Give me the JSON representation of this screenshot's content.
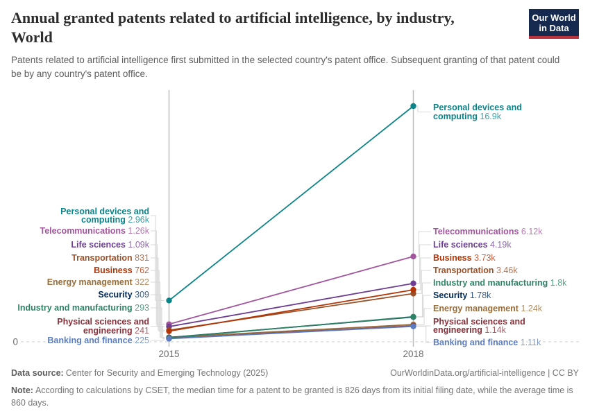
{
  "header": {
    "title_line1": "Annual granted patents related to artificial intelligence, by industry,",
    "title_line2": "World",
    "subtitle": "Patents related to artificial intelligence first submitted in the selected country's patent office. Subsequent granting of that patent could be by any country's patent office.",
    "logo": {
      "line1": "Our World",
      "line2": "in Data",
      "bg_color": "#16294F",
      "accent_color": "#C0323B",
      "text_color": "#FFFFFF"
    }
  },
  "chart_data": {
    "type": "line",
    "subtype": "slope",
    "x": [
      2015,
      2018
    ],
    "x_tick_labels": [
      "2015",
      "2018"
    ],
    "y_axis": {
      "min": 0,
      "max": 16900,
      "min_label": "0",
      "zero_gridline": "dashed"
    },
    "legend_position": "inline-labels-both-sides",
    "series": [
      {
        "name": "Personal devices and computing",
        "color": "#0B8489",
        "values": [
          2960,
          16900
        ],
        "value_labels": [
          "2.96k",
          "16.9k"
        ]
      },
      {
        "name": "Telecommunications",
        "color": "#A2559C",
        "values": [
          1260,
          6120
        ],
        "value_labels": [
          "1.26k",
          "6.12k"
        ]
      },
      {
        "name": "Life sciences",
        "color": "#6D3E91",
        "values": [
          1090,
          4190
        ],
        "value_labels": [
          "1.09k",
          "4.19k"
        ]
      },
      {
        "name": "Transportation",
        "color": "#9A5129",
        "values": [
          831,
          3460
        ],
        "value_labels": [
          "831",
          "3.46k"
        ]
      },
      {
        "name": "Business",
        "color": "#B13507",
        "values": [
          762,
          3730
        ],
        "value_labels": [
          "762",
          "3.73k"
        ]
      },
      {
        "name": "Energy management",
        "color": "#996D39",
        "values": [
          322,
          1240
        ],
        "value_labels": [
          "322",
          "1.24k"
        ]
      },
      {
        "name": "Security",
        "color": "#00295B",
        "values": [
          309,
          1780
        ],
        "value_labels": [
          "309",
          "1.78k"
        ]
      },
      {
        "name": "Industry and manufacturing",
        "color": "#2C8465",
        "values": [
          293,
          1800
        ],
        "value_labels": [
          "293",
          "1.8k"
        ]
      },
      {
        "name": "Physical sciences and engineering",
        "color": "#883039",
        "values": [
          241,
          1140
        ],
        "value_labels": [
          "241",
          "1.14k"
        ]
      },
      {
        "name": "Banking and finance",
        "color": "#5B7CBE",
        "values": [
          225,
          1110
        ],
        "value_labels": [
          "225",
          "1.11k"
        ]
      }
    ]
  },
  "footer": {
    "datasource_label": "Data source:",
    "datasource_text": "Center for Security and Emerging Technology (2025)",
    "credit": "OurWorldinData.org/artificial-intelligence | CC BY",
    "note_label": "Note:",
    "note_text": "According to calculations by CSET, the median time for a patent to be granted is 826 days from its initial filing date, while the average time is 860 days."
  }
}
